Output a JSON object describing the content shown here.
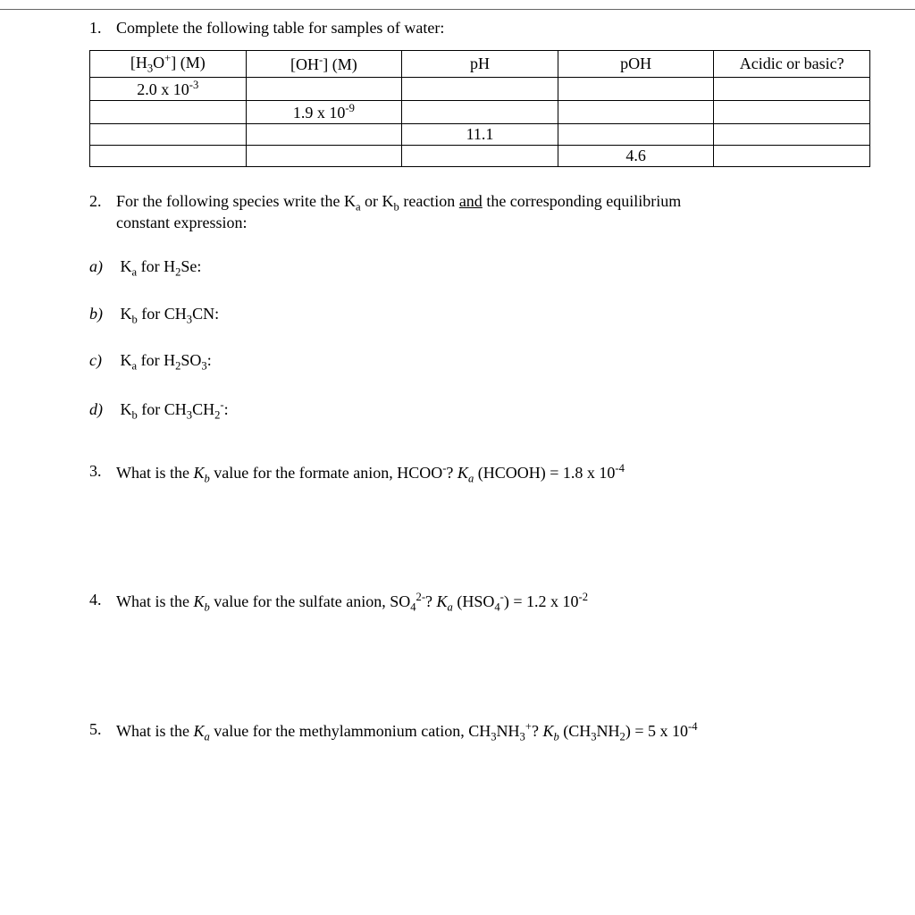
{
  "q1": {
    "number": "1.",
    "text": "Complete the following table for samples of water:",
    "table": {
      "headers": [
        "[H₃O⁺] (M)",
        "[OH⁻] (M)",
        "pH",
        "pOH",
        "Acidic or basic?"
      ],
      "rows": [
        [
          "2.0 x 10⁻³",
          "",
          "",
          "",
          ""
        ],
        [
          "",
          "1.9 x 10⁻⁹",
          "",
          "",
          ""
        ],
        [
          "",
          "",
          "11.1",
          "",
          ""
        ],
        [
          "",
          "",
          "",
          "4.6",
          ""
        ]
      ]
    }
  },
  "q2": {
    "number": "2.",
    "text_before": "For the following species write the K",
    "text_mid": " or K",
    "text_after": " reaction ",
    "text_underlined": "and",
    "text_end": " the corresponding equilibrium",
    "text_line2": "constant expression:",
    "items": {
      "a": {
        "letter": "a)",
        "label": "Kₐ for H₂Se:"
      },
      "b": {
        "letter": "b)",
        "label": "K_b for CH₃CN:"
      },
      "c": {
        "letter": "c)",
        "label": "Kₐ for H₂SO₃:"
      },
      "d": {
        "letter": "d)",
        "label": "K_b for CH₃CH₂⁻:"
      }
    }
  },
  "q3": {
    "number": "3.",
    "text": "What is the K_b value for the formate anion, HCOO⁻? Kₐ (HCOOH) = 1.8 x 10⁻⁴"
  },
  "q4": {
    "number": "4.",
    "text": "What is the K_b value for the sulfate anion, SO₄²⁻? Kₐ (HSO₄⁻) = 1.2 x 10⁻²"
  },
  "q5": {
    "number": "5.",
    "text": "What is the Kₐ value for the methylammonium cation, CH₃NH₃⁺? K_b (CH₃NH₂) = 5 x 10⁻⁴"
  },
  "style": {
    "background_color": "#ffffff",
    "text_color": "#000000",
    "border_color": "#000000",
    "font_family": "Times New Roman",
    "base_fontsize": 18
  }
}
